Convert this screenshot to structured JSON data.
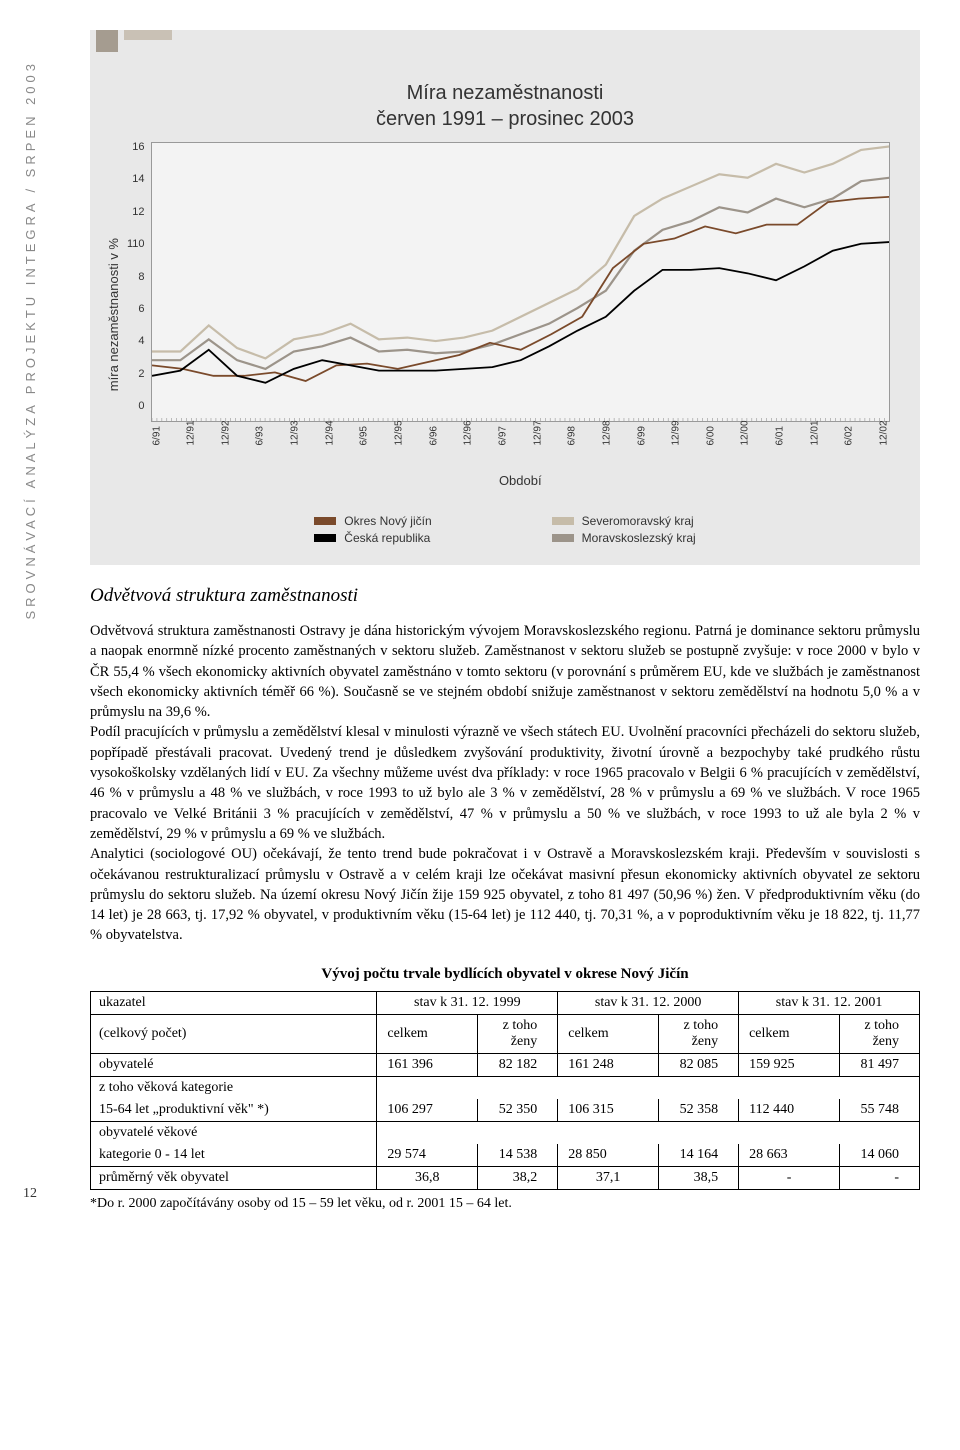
{
  "side": {
    "label": "SROVNÁVACÍ ANALÝZA PROJEKTU INTEGRA / SRPEN 2003",
    "page": "12"
  },
  "chart": {
    "type": "line",
    "title_line1": "Míra nezaměstnanosti",
    "title_line2": "červen 1991 – prosinec 2003",
    "y_axis_label": "míra nezaměstnanosti v %",
    "x_axis_label": "Období",
    "ylim": [
      0,
      16
    ],
    "yticks": [
      "16",
      "14",
      "12",
      "110",
      "8",
      "6",
      "4",
      "2",
      "0"
    ],
    "xticks": [
      "6/91",
      "12/91",
      "12/92",
      "6/93",
      "12/93",
      "12/94",
      "6/95",
      "12/95",
      "6/96",
      "12/96",
      "6/97",
      "12/97",
      "6/98",
      "12/98",
      "6/99",
      "12/99",
      "6/00",
      "12/00",
      "6/01",
      "12/01",
      "6/02",
      "12/02"
    ],
    "background_color": "#e8e8e8",
    "plot_bg": "#f3f3f3",
    "axis_color": "#999999",
    "series": [
      {
        "name": "Okres Nový jičín",
        "color": "#7a4a2b",
        "values": [
          3.2,
          3.0,
          2.6,
          2.6,
          2.8,
          2.3,
          3.2,
          3.3,
          3.0,
          3.4,
          3.8,
          4.5,
          4.1,
          5.0,
          6.0,
          8.8,
          10.2,
          10.5,
          11.2,
          10.8,
          11.3,
          11.3,
          12.6,
          12.8,
          12.9
        ]
      },
      {
        "name": "Česká republika",
        "color": "#000000",
        "values": [
          2.6,
          2.9,
          4.1,
          2.6,
          2.2,
          3.0,
          3.5,
          3.2,
          2.9,
          2.9,
          2.9,
          3.0,
          3.1,
          3.5,
          4.3,
          5.2,
          6.0,
          7.5,
          8.7,
          8.7,
          8.8,
          8.5,
          8.1,
          8.9,
          9.8,
          10.2,
          10.3
        ]
      },
      {
        "name": "Severomoravský kraj",
        "color": "#c6bca9",
        "values": [
          4.0,
          4.0,
          5.5,
          4.2,
          3.6,
          4.7,
          5.0,
          5.6,
          4.7,
          4.8,
          4.6,
          4.8,
          5.2,
          6.0,
          6.8,
          7.6,
          9.0,
          11.8,
          12.8,
          13.5,
          14.2,
          14.0,
          14.8,
          14.3,
          14.8,
          15.6,
          15.8
        ]
      },
      {
        "name": "Moravskoslezský kraj",
        "color": "#9c948a",
        "values": [
          3.5,
          3.5,
          4.7,
          3.5,
          3.0,
          4.0,
          4.3,
          4.8,
          4.0,
          4.1,
          3.9,
          4.0,
          4.4,
          5.0,
          5.6,
          6.5,
          7.5,
          9.8,
          11.0,
          11.5,
          12.3,
          12.0,
          12.8,
          12.3,
          12.8,
          13.8,
          14.0
        ]
      }
    ],
    "legend": [
      {
        "label": "Okres Nový jičín",
        "color": "#7a4a2b"
      },
      {
        "label": "Česká republika",
        "color": "#000000"
      },
      {
        "label": "Severomoravský kraj",
        "color": "#c6bca9"
      },
      {
        "label": "Moravskoslezský kraj",
        "color": "#9c948a"
      }
    ]
  },
  "heading": "Odvětvová struktura zaměstnanosti",
  "body": "Odvětvová struktura zaměstnanosti Ostravy je dána historickým vývojem Moravskoslezského regionu. Patrná je dominance sektoru průmyslu a naopak enormně nízké procento zaměstnaných v sektoru služeb. Zaměstnanost v sektoru služeb se postupně zvyšuje: v roce 2000 v bylo v ČR 55,4 % všech ekonomicky aktivních obyvatel zaměstnáno v tomto sektoru (v porovnání s průměrem EU, kde ve službách je zaměstnanost všech ekonomicky aktivních téměř 66 %). Současně se ve stejném období snižuje zaměstnanost v sektoru zemědělství na hodnotu 5,0 % a v průmyslu na 39,6 %.\nPodíl pracujících v průmyslu a zemědělství klesal v minulosti výrazně ve všech státech EU. Uvolnění pracovníci přecházeli do sektoru služeb, popřípadě přestávali pracovat. Uvedený trend je důsledkem zvyšování produktivity, životní úrovně a bezpochyby také prudkého růstu vysokoškolsky vzdělaných lidí v EU. Za všechny můžeme uvést dva příklady: v roce 1965 pracovalo v Belgii 6 % pracujících v zemědělství, 46 % v průmyslu a 48 % ve službách, v roce 1993 to už bylo ale 3 % v zemědělství, 28 % v průmyslu a 69 % ve službách. V roce 1965 pracovalo ve Velké Británii 3 % pracujících v zemědělství, 47 % v průmyslu a 50 % ve službách, v roce 1993 to už ale byla 2 % v zemědělství, 29 % v průmyslu a 69 % ve službách.\nAnalytici (sociologové OU) očekávají, že tento trend bude pokračovat i v Ostravě a Moravskoslezském kraji. Především v souvislosti s očekávanou restrukturalizací průmyslu v Ostravě a v celém kraji lze očekávat masivní přesun ekonomicky aktivních obyvatel ze sektoru průmyslu do sektoru služeb. Na území okresu Nový Jičín žije 159 925 obyvatel, z toho 81 497 (50,96 %) žen. V předproduktivním věku (do 14 let) je 28 663, tj. 17,92 % obyvatel, v produktivním věku (15-64 let) je 112 440, tj. 70,31 %, a v poproduktivním věku je 18 822, tj. 11,77 % obyvatelstva.",
  "table": {
    "title": "Vývoj počtu trvale bydlících obyvatel v okrese Nový Jičín",
    "head_r1": [
      "ukazatel",
      "stav k 31. 12. 1999",
      "stav k 31. 12. 2000",
      "stav k 31. 12. 2001"
    ],
    "head_r2": [
      "(celkový počet)",
      "celkem",
      "z toho ženy",
      "celkem",
      "z toho ženy",
      "celkem",
      "z toho ženy"
    ],
    "rows": [
      {
        "label": "obyvatelé",
        "c1": "161 396",
        "z1": "82 182",
        "c2": "161 248",
        "z2": "82 085",
        "c3": "159 925",
        "z3": "81 497"
      },
      {
        "label_a": "z toho věková kategorie",
        "label_b": "15-64 let „produktivní věk\" *)",
        "c1": "106 297",
        "z1": "52 350",
        "c2": "106 315",
        "z2": "52 358",
        "c3": "112 440",
        "z3": "55 748"
      },
      {
        "label_a": "obyvatelé věkové",
        "label_b": "kategorie 0 - 14 let",
        "c1": "29 574",
        "z1": "14 538",
        "c2": "28 850",
        "z2": "14 164",
        "c3": "28 663",
        "z3": "14 060"
      },
      {
        "label": "průměrný věk obyvatel",
        "c1": "36,8",
        "z1": "38,2",
        "c2": "37,1",
        "z2": "38,5",
        "c3": "-",
        "z3": "-"
      }
    ],
    "footnote": "*Do r. 2000 započítávány osoby od 15 – 59 let věku, od r. 2001 15 – 64 let."
  }
}
